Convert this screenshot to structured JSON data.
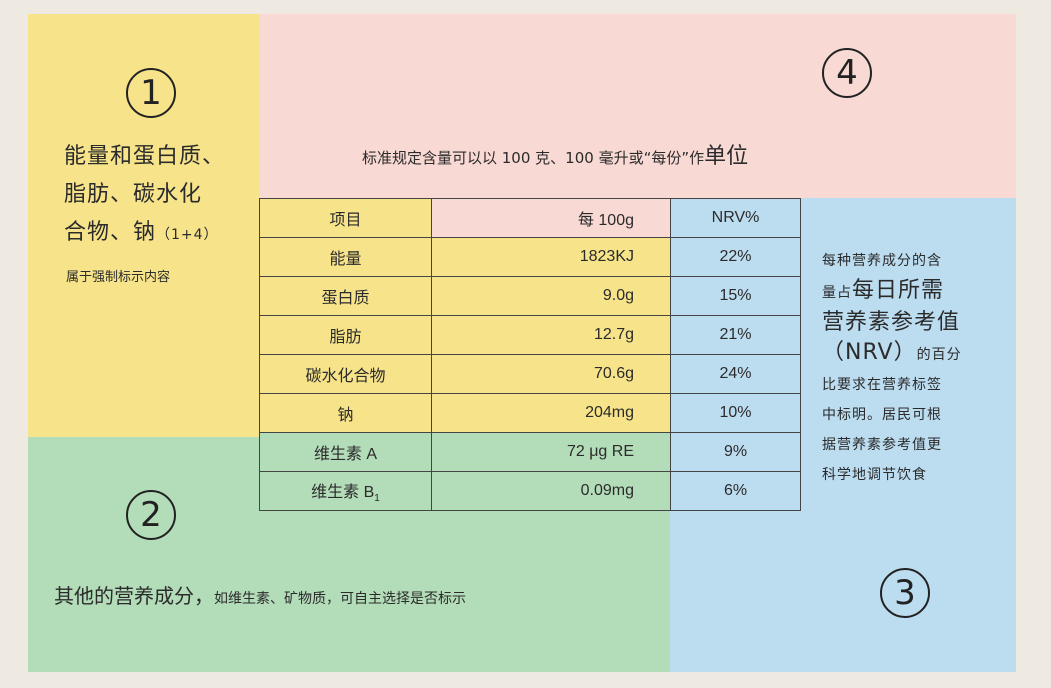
{
  "region1": {
    "number": "1",
    "line1": "能量和蛋白质、",
    "line2": "脂肪、碳水化",
    "line3": "合物、钠",
    "line3_small": "（1+4）",
    "note": "属于强制标示内容"
  },
  "region2": {
    "number": "2",
    "text_big": "其他的营养成分，",
    "text_small": "如维生素、矿物质，可自主选择是否标示"
  },
  "region3": {
    "number": "3",
    "line1": "每种营养成分的含",
    "line2_small": "量占",
    "line2_big": "每日所需",
    "line3": "营养素参考值",
    "line4_big": "（NRV）",
    "line4_small": "的百分",
    "line5": "比要求在营养标签",
    "line6": "中标明。居民可根",
    "line7": "据营养素参考值更",
    "line8": "科学地调节饮食"
  },
  "region4": {
    "number": "4",
    "text": "标准规定含量可以以 100 克、100 毫升或“每份”作",
    "text_big": "单位"
  },
  "table": {
    "header": [
      "项目",
      "每 100g",
      "NRV%"
    ],
    "rows": [
      [
        "能量",
        "1823KJ",
        "22%"
      ],
      [
        "蛋白质",
        "9.0g",
        "15%"
      ],
      [
        "脂肪",
        "12.7g",
        "21%"
      ],
      [
        "碳水化合物",
        "70.6g",
        "24%"
      ],
      [
        "钠",
        "204mg",
        "10%"
      ],
      [
        "维生素 A",
        "72 μg RE",
        "9%"
      ],
      [
        "维生素 B",
        "0.09mg",
        "6%"
      ]
    ],
    "b_subscript": "1"
  },
  "colors": {
    "yellow": "#f7e48a",
    "pink": "#f8d9d3",
    "blue": "#bcdcf0",
    "green": "#b3dcb8"
  }
}
